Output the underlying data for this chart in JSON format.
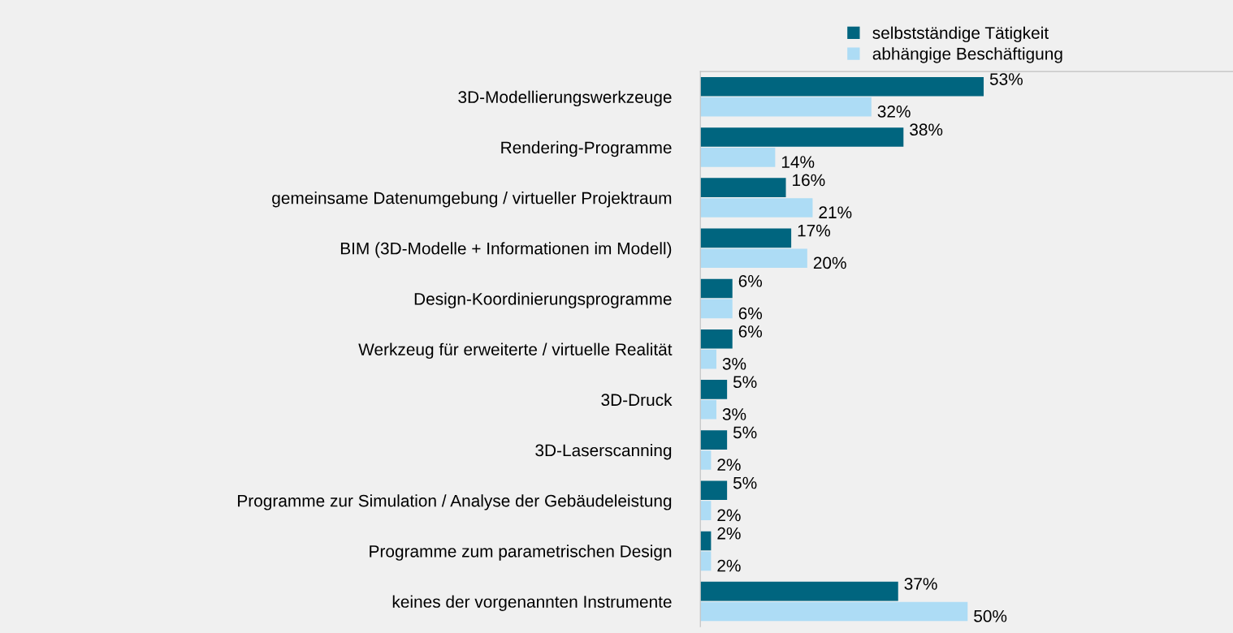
{
  "chart_data": {
    "type": "bar",
    "orientation": "horizontal",
    "categories": [
      "3D-Modellierungswerkzeuge",
      "Rendering-Programme",
      "gemeinsame Datenumgebung / virtueller Projektraum",
      "BIM (3D-Modelle + Informationen im Modell)",
      "Design-Koordinierungsprogramme",
      "Werkzeug für erweiterte / virtuelle Realität",
      "3D-Druck",
      "3D-Laserscanning",
      "Programme zur Simulation / Analyse der Gebäudeleistung",
      "Programme zum parametrischen Design",
      "keines der vorgenannten Instrumente"
    ],
    "series": [
      {
        "name": "selbstständige Tätigkeit",
        "color": "#00657f",
        "values": [
          53,
          38,
          16,
          17,
          6,
          6,
          5,
          5,
          5,
          2,
          37
        ],
        "value_labels": [
          "53%",
          "38%",
          "16%",
          "17%",
          "6%",
          "6%",
          "5%",
          "5%",
          "5%",
          "2%",
          "37%"
        ]
      },
      {
        "name": "abhängige Beschäftigung",
        "color": "#addcf5",
        "values": [
          32,
          14,
          21,
          20,
          6,
          3,
          3,
          2,
          2,
          2,
          50
        ],
        "value_labels": [
          "32%",
          "14%",
          "21%",
          "20%",
          "6%",
          "3%",
          "3%",
          "2%",
          "2%",
          "2%",
          "50%"
        ]
      }
    ],
    "tick_labels": "y",
    "legend": "top right"
  }
}
